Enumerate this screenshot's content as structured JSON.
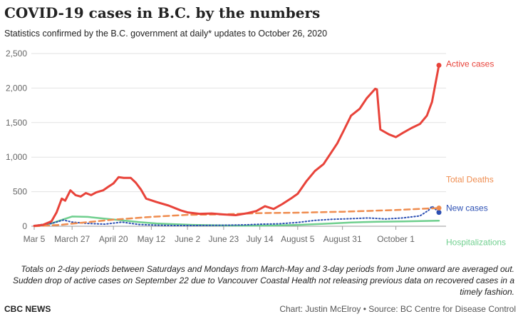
{
  "header": {
    "title": "COVID-19 cases in B.C. by the numbers",
    "subtitle": "Statistics confirmed by the B.C. government at daily* updates to October 26, 2020"
  },
  "note": "Totals on 2-day periods between Saturdays and Mondays from March-May and 3-day periods from June onward are averaged out. Sudden drop of active cases on September 22 due to Vancouver Coastal Health not releasing previous data on recovered cases in a timely fashion.",
  "footer": {
    "brand": "CBC NEWS",
    "credit": "Chart: Justin McElroy • Source: BC Centre for Disease Control"
  },
  "chart_data": {
    "type": "line",
    "x_start": "2020-03-05",
    "x_end": "2020-10-26",
    "xticks": [
      {
        "label": "Mar 5",
        "date": "2020-03-05"
      },
      {
        "label": "March 27",
        "date": "2020-03-27"
      },
      {
        "label": "April 20",
        "date": "2020-04-20"
      },
      {
        "label": "May 12",
        "date": "2020-05-12"
      },
      {
        "label": "June 2",
        "date": "2020-06-02"
      },
      {
        "label": "June 23",
        "date": "2020-06-23"
      },
      {
        "label": "July 14",
        "date": "2020-07-14"
      },
      {
        "label": "August 5",
        "date": "2020-08-05"
      },
      {
        "label": "August 31",
        "date": "2020-08-31"
      },
      {
        "label": "October 1",
        "date": "2020-10-01"
      }
    ],
    "yticks": [
      0,
      500,
      1000,
      1500,
      2000,
      2500
    ],
    "ytick_labels": [
      "0",
      "500",
      "1,000",
      "1,500",
      "2,000",
      "2,500"
    ],
    "ylim": [
      0,
      2500
    ],
    "grid": true,
    "series": [
      {
        "name": "Active cases",
        "color": "#e8433a",
        "style": "solid",
        "end_marker": true,
        "points": [
          [
            "2020-03-05",
            5
          ],
          [
            "2020-03-10",
            20
          ],
          [
            "2020-03-15",
            70
          ],
          [
            "2020-03-18",
            200
          ],
          [
            "2020-03-21",
            400
          ],
          [
            "2020-03-23",
            370
          ],
          [
            "2020-03-26",
            520
          ],
          [
            "2020-03-29",
            450
          ],
          [
            "2020-04-01",
            430
          ],
          [
            "2020-04-04",
            480
          ],
          [
            "2020-04-07",
            450
          ],
          [
            "2020-04-10",
            490
          ],
          [
            "2020-04-14",
            520
          ],
          [
            "2020-04-17",
            570
          ],
          [
            "2020-04-20",
            620
          ],
          [
            "2020-04-23",
            710
          ],
          [
            "2020-04-26",
            700
          ],
          [
            "2020-04-30",
            700
          ],
          [
            "2020-05-03",
            630
          ],
          [
            "2020-05-06",
            530
          ],
          [
            "2020-05-09",
            400
          ],
          [
            "2020-05-15",
            350
          ],
          [
            "2020-05-22",
            300
          ],
          [
            "2020-05-29",
            230
          ],
          [
            "2020-06-02",
            200
          ],
          [
            "2020-06-09",
            180
          ],
          [
            "2020-06-16",
            185
          ],
          [
            "2020-06-23",
            170
          ],
          [
            "2020-06-30",
            160
          ],
          [
            "2020-07-07",
            190
          ],
          [
            "2020-07-12",
            220
          ],
          [
            "2020-07-17",
            290
          ],
          [
            "2020-07-22",
            250
          ],
          [
            "2020-07-27",
            320
          ],
          [
            "2020-08-01",
            400
          ],
          [
            "2020-08-05",
            470
          ],
          [
            "2020-08-10",
            650
          ],
          [
            "2020-08-15",
            800
          ],
          [
            "2020-08-20",
            900
          ],
          [
            "2020-08-24",
            1050
          ],
          [
            "2020-08-28",
            1200
          ],
          [
            "2020-09-01",
            1400
          ],
          [
            "2020-09-05",
            1600
          ],
          [
            "2020-09-10",
            1700
          ],
          [
            "2020-09-14",
            1850
          ],
          [
            "2020-09-19",
            1990
          ],
          [
            "2020-09-20",
            1980
          ],
          [
            "2020-09-22",
            1400
          ],
          [
            "2020-09-27",
            1330
          ],
          [
            "2020-10-01",
            1290
          ],
          [
            "2020-10-05",
            1350
          ],
          [
            "2020-10-10",
            1420
          ],
          [
            "2020-10-15",
            1480
          ],
          [
            "2020-10-19",
            1600
          ],
          [
            "2020-10-22",
            1800
          ],
          [
            "2020-10-26",
            2330
          ]
        ]
      },
      {
        "name": "Total Deaths",
        "color": "#ef8c4f",
        "style": "dashed",
        "end_marker": true,
        "points": [
          [
            "2020-03-05",
            0
          ],
          [
            "2020-03-20",
            20
          ],
          [
            "2020-04-01",
            50
          ],
          [
            "2020-04-20",
            95
          ],
          [
            "2020-05-12",
            135
          ],
          [
            "2020-06-02",
            165
          ],
          [
            "2020-06-23",
            172
          ],
          [
            "2020-07-14",
            190
          ],
          [
            "2020-08-05",
            196
          ],
          [
            "2020-08-31",
            210
          ],
          [
            "2020-10-01",
            235
          ],
          [
            "2020-10-26",
            263
          ]
        ]
      },
      {
        "name": "New cases",
        "color": "#2b4fb3",
        "style": "dotted",
        "end_marker": true,
        "points": [
          [
            "2020-03-05",
            10
          ],
          [
            "2020-03-15",
            40
          ],
          [
            "2020-03-22",
            90
          ],
          [
            "2020-03-27",
            60
          ],
          [
            "2020-04-05",
            40
          ],
          [
            "2020-04-15",
            30
          ],
          [
            "2020-04-25",
            60
          ],
          [
            "2020-05-05",
            25
          ],
          [
            "2020-05-15",
            15
          ],
          [
            "2020-05-25",
            10
          ],
          [
            "2020-06-05",
            10
          ],
          [
            "2020-06-15",
            12
          ],
          [
            "2020-06-25",
            15
          ],
          [
            "2020-07-05",
            20
          ],
          [
            "2020-07-15",
            30
          ],
          [
            "2020-07-25",
            35
          ],
          [
            "2020-08-05",
            55
          ],
          [
            "2020-08-15",
            85
          ],
          [
            "2020-08-25",
            100
          ],
          [
            "2020-09-05",
            110
          ],
          [
            "2020-09-15",
            120
          ],
          [
            "2020-09-25",
            105
          ],
          [
            "2020-10-05",
            120
          ],
          [
            "2020-10-15",
            150
          ],
          [
            "2020-10-20",
            230
          ],
          [
            "2020-10-22",
            290
          ],
          [
            "2020-10-26",
            200
          ]
        ]
      },
      {
        "name": "Hospitalizations",
        "color": "#6fcf8e",
        "style": "solid",
        "end_marker": false,
        "points": [
          [
            "2020-03-05",
            5
          ],
          [
            "2020-03-15",
            40
          ],
          [
            "2020-03-22",
            100
          ],
          [
            "2020-03-27",
            140
          ],
          [
            "2020-04-05",
            135
          ],
          [
            "2020-04-15",
            110
          ],
          [
            "2020-04-25",
            85
          ],
          [
            "2020-05-05",
            60
          ],
          [
            "2020-05-15",
            40
          ],
          [
            "2020-05-25",
            30
          ],
          [
            "2020-06-05",
            20
          ],
          [
            "2020-06-20",
            12
          ],
          [
            "2020-07-05",
            8
          ],
          [
            "2020-07-20",
            10
          ],
          [
            "2020-08-05",
            20
          ],
          [
            "2020-08-20",
            35
          ],
          [
            "2020-09-05",
            55
          ],
          [
            "2020-09-20",
            65
          ],
          [
            "2020-10-05",
            70
          ],
          [
            "2020-10-26",
            80
          ]
        ]
      }
    ]
  }
}
